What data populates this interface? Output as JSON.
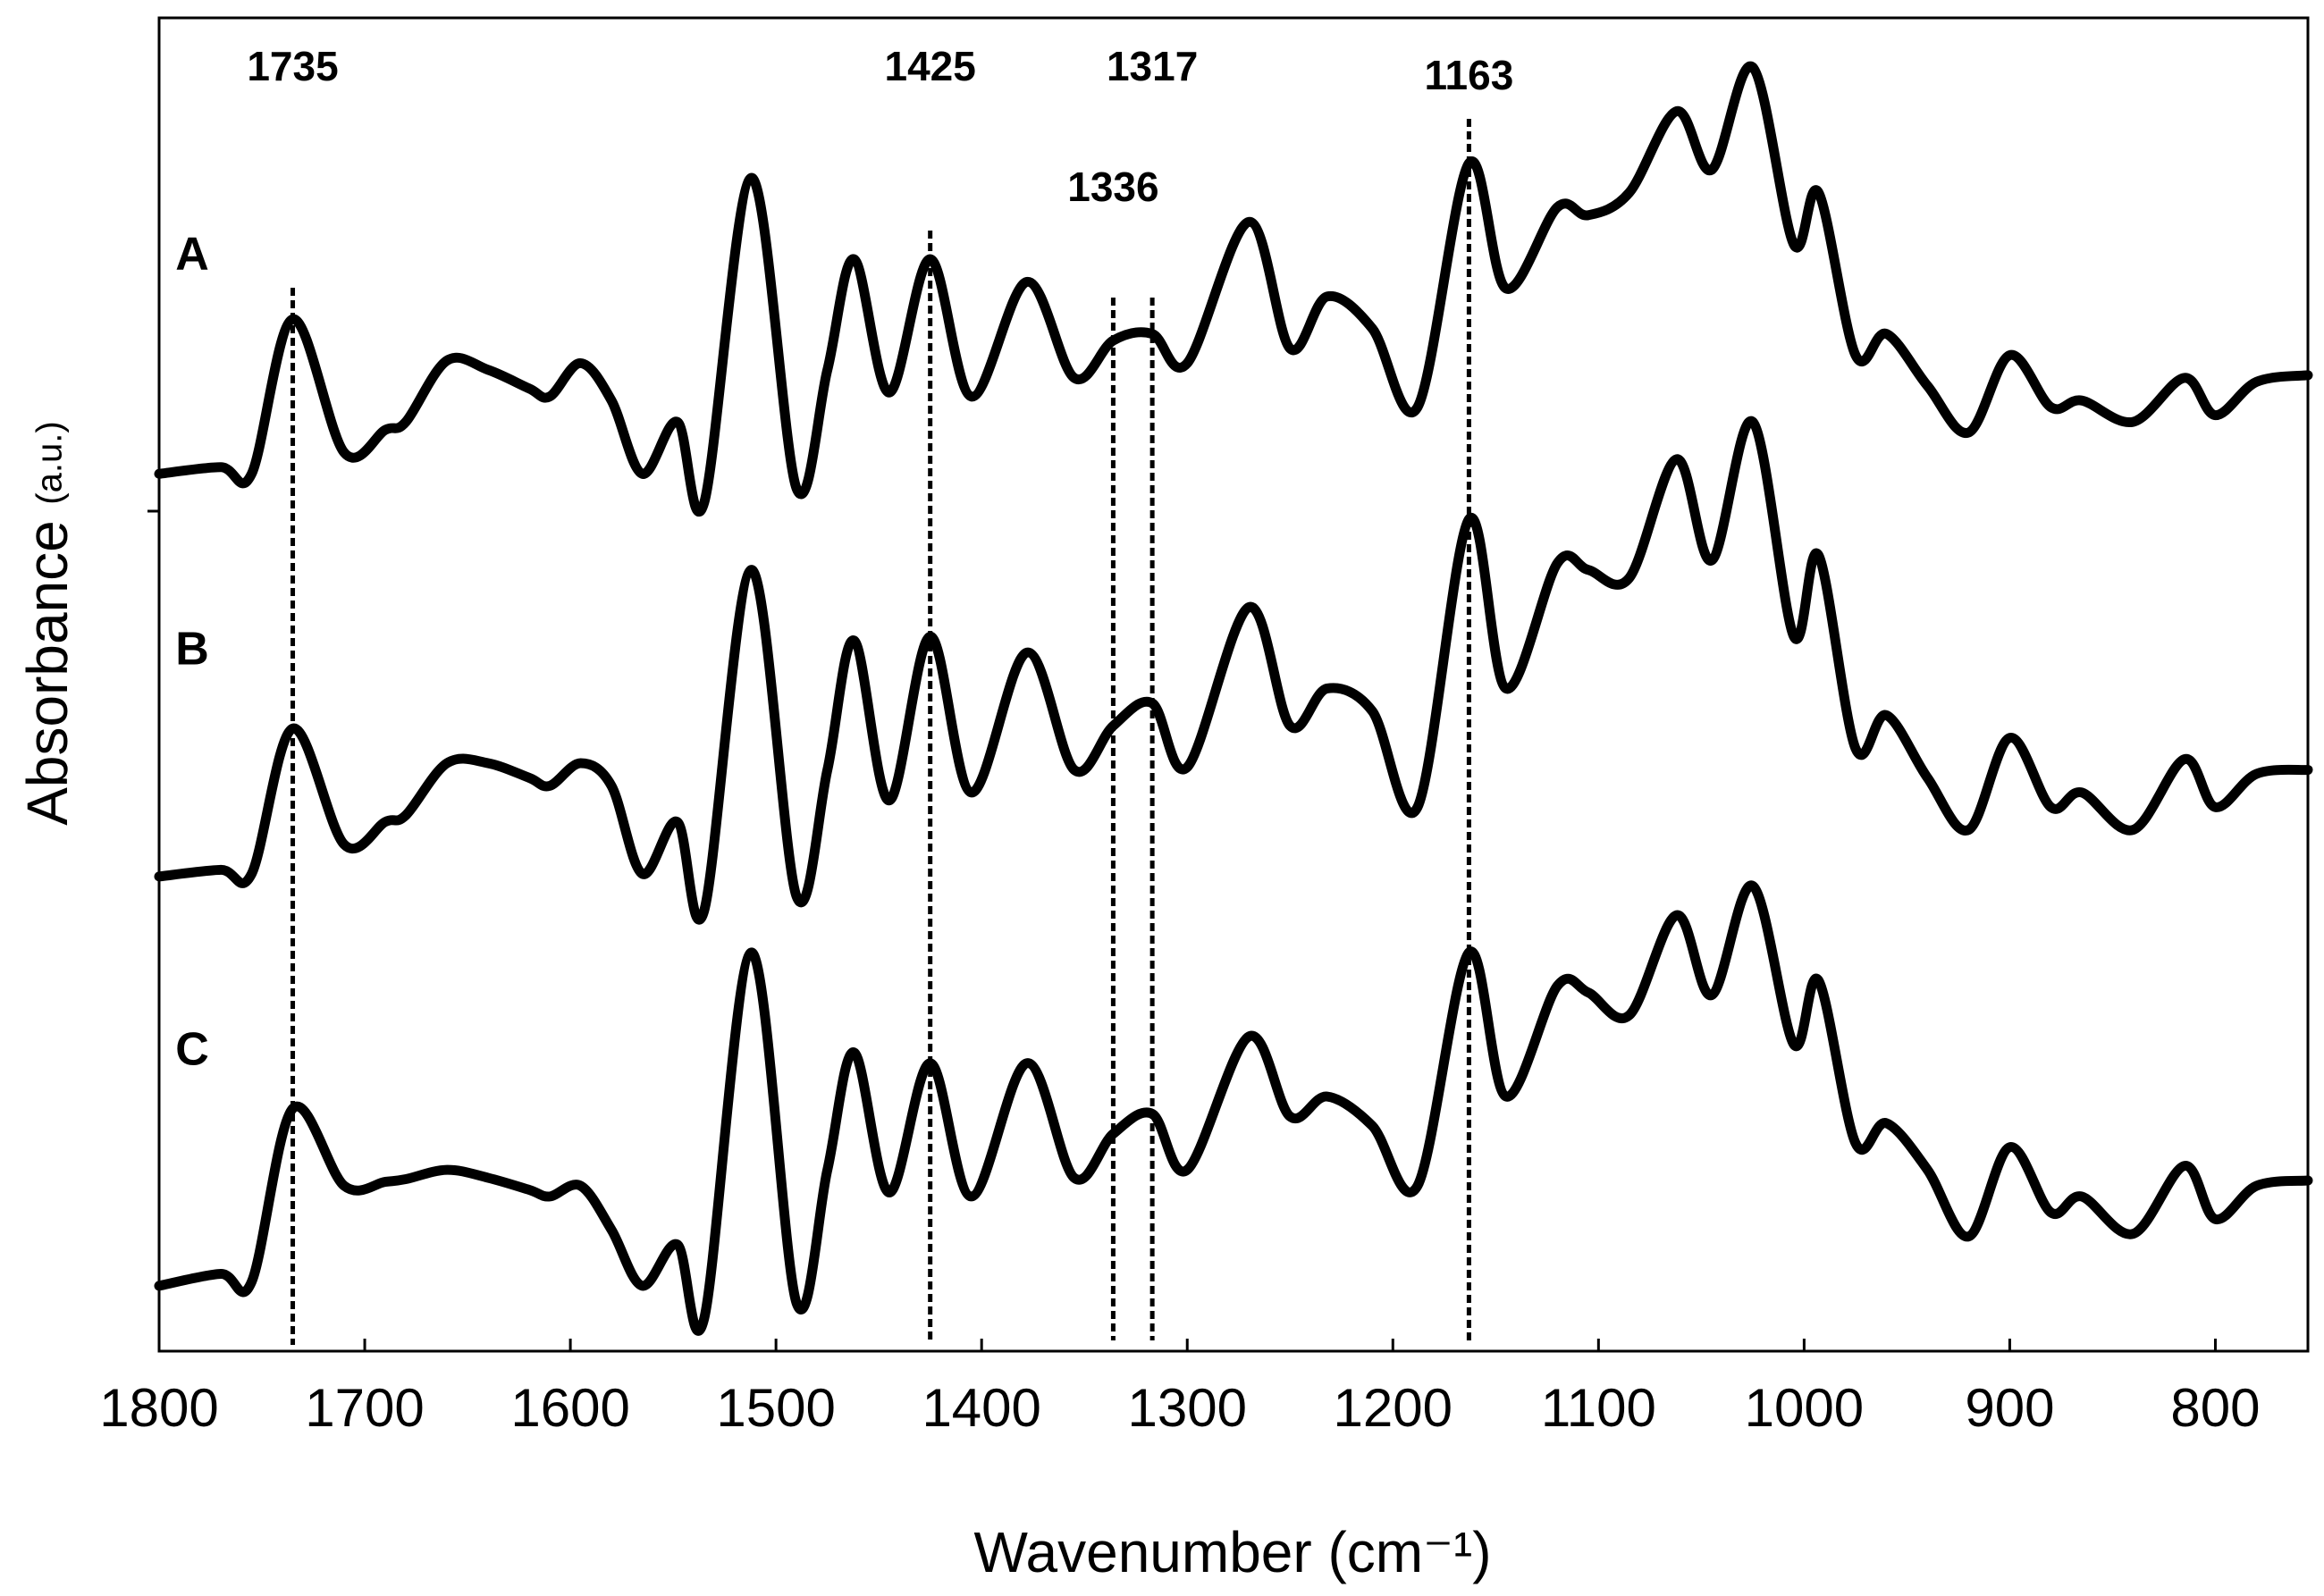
{
  "chart_data": {
    "type": "line",
    "x_label": "Wavenumber (cm⁻¹)",
    "y_label": "Absorbance",
    "y_unit": "(a.u.)",
    "xlim": [
      1800,
      755
    ],
    "xticks": [
      1800,
      1700,
      1600,
      1500,
      1400,
      1300,
      1200,
      1100,
      1000,
      900,
      800
    ],
    "ylim": [
      0,
      100
    ],
    "grid": false,
    "annotations": [
      1735,
      1425,
      1336,
      1317,
      1163
    ],
    "x": [
      1800,
      1770,
      1755,
      1735,
      1710,
      1690,
      1680,
      1660,
      1640,
      1620,
      1610,
      1595,
      1580,
      1565,
      1548,
      1535,
      1512,
      1490,
      1475,
      1462,
      1445,
      1425,
      1405,
      1378,
      1355,
      1336,
      1317,
      1300,
      1270,
      1250,
      1232,
      1210,
      1188,
      1163,
      1145,
      1120,
      1105,
      1085,
      1062,
      1045,
      1025,
      1005,
      993,
      975,
      960,
      940,
      920,
      900,
      880,
      865,
      840,
      815,
      800,
      780,
      755
    ],
    "series": [
      {
        "name": "A",
        "color": "#000000",
        "values": [
          65.8,
          66.3,
          65.8,
          77.4,
          67.4,
          69.1,
          69.7,
          74.3,
          73.6,
          72.2,
          71.6,
          74.1,
          71.3,
          65.8,
          69.7,
          63.6,
          88,
          64.7,
          73.6,
          81.9,
          71.9,
          81.9,
          71.6,
          80.2,
          73,
          75.8,
          76.3,
          74.1,
          84.7,
          75.2,
          79.1,
          76.7,
          70.8,
          89.1,
          79.7,
          85.8,
          85.2,
          86.9,
          93,
          88.6,
          96.3,
          83,
          86.9,
          74.7,
          76.3,
          72.4,
          68.9,
          74.7,
          70.8,
          71.3,
          69.7,
          73,
          70.2,
          72.7,
          73.2
        ]
      },
      {
        "name": "B",
        "color": "#000000",
        "values": [
          35.6,
          36.1,
          35.8,
          46.7,
          38,
          39.7,
          40.2,
          44.1,
          44.1,
          43,
          42.4,
          44.1,
          42.4,
          35.8,
          39.7,
          33,
          58.6,
          34.1,
          43.6,
          53.3,
          41.3,
          53.6,
          41.9,
          52.4,
          43.6,
          46.9,
          48.6,
          43.8,
          55.8,
          46.9,
          49.7,
          48,
          40.8,
          62.4,
          49.7,
          59.1,
          58.6,
          58,
          66.9,
          59.3,
          69.7,
          53.6,
          59.7,
          45.2,
          47.7,
          43,
          39.1,
          46,
          40.8,
          41.9,
          39.1,
          44.4,
          40.8,
          43.3,
          43.6
        ]
      },
      {
        "name": "C",
        "color": "#000000",
        "values": [
          4.9,
          5.8,
          5.2,
          18.2,
          12.4,
          12.7,
          12.9,
          13.6,
          13,
          12.1,
          11.6,
          12.4,
          9.1,
          4.9,
          8,
          2.4,
          29.9,
          3.6,
          13.6,
          22.4,
          11.9,
          21.6,
          11.6,
          21.6,
          13,
          16.3,
          17.8,
          13.6,
          23.6,
          17.6,
          19.1,
          16.9,
          12.4,
          29.9,
          19.1,
          27.4,
          26.9,
          25.2,
          32.7,
          26.7,
          34.9,
          23,
          27.8,
          15.6,
          17.1,
          13.6,
          8.6,
          15.3,
          10.4,
          11.6,
          8.8,
          13.9,
          9.9,
          12.4,
          12.8
        ]
      }
    ]
  }
}
